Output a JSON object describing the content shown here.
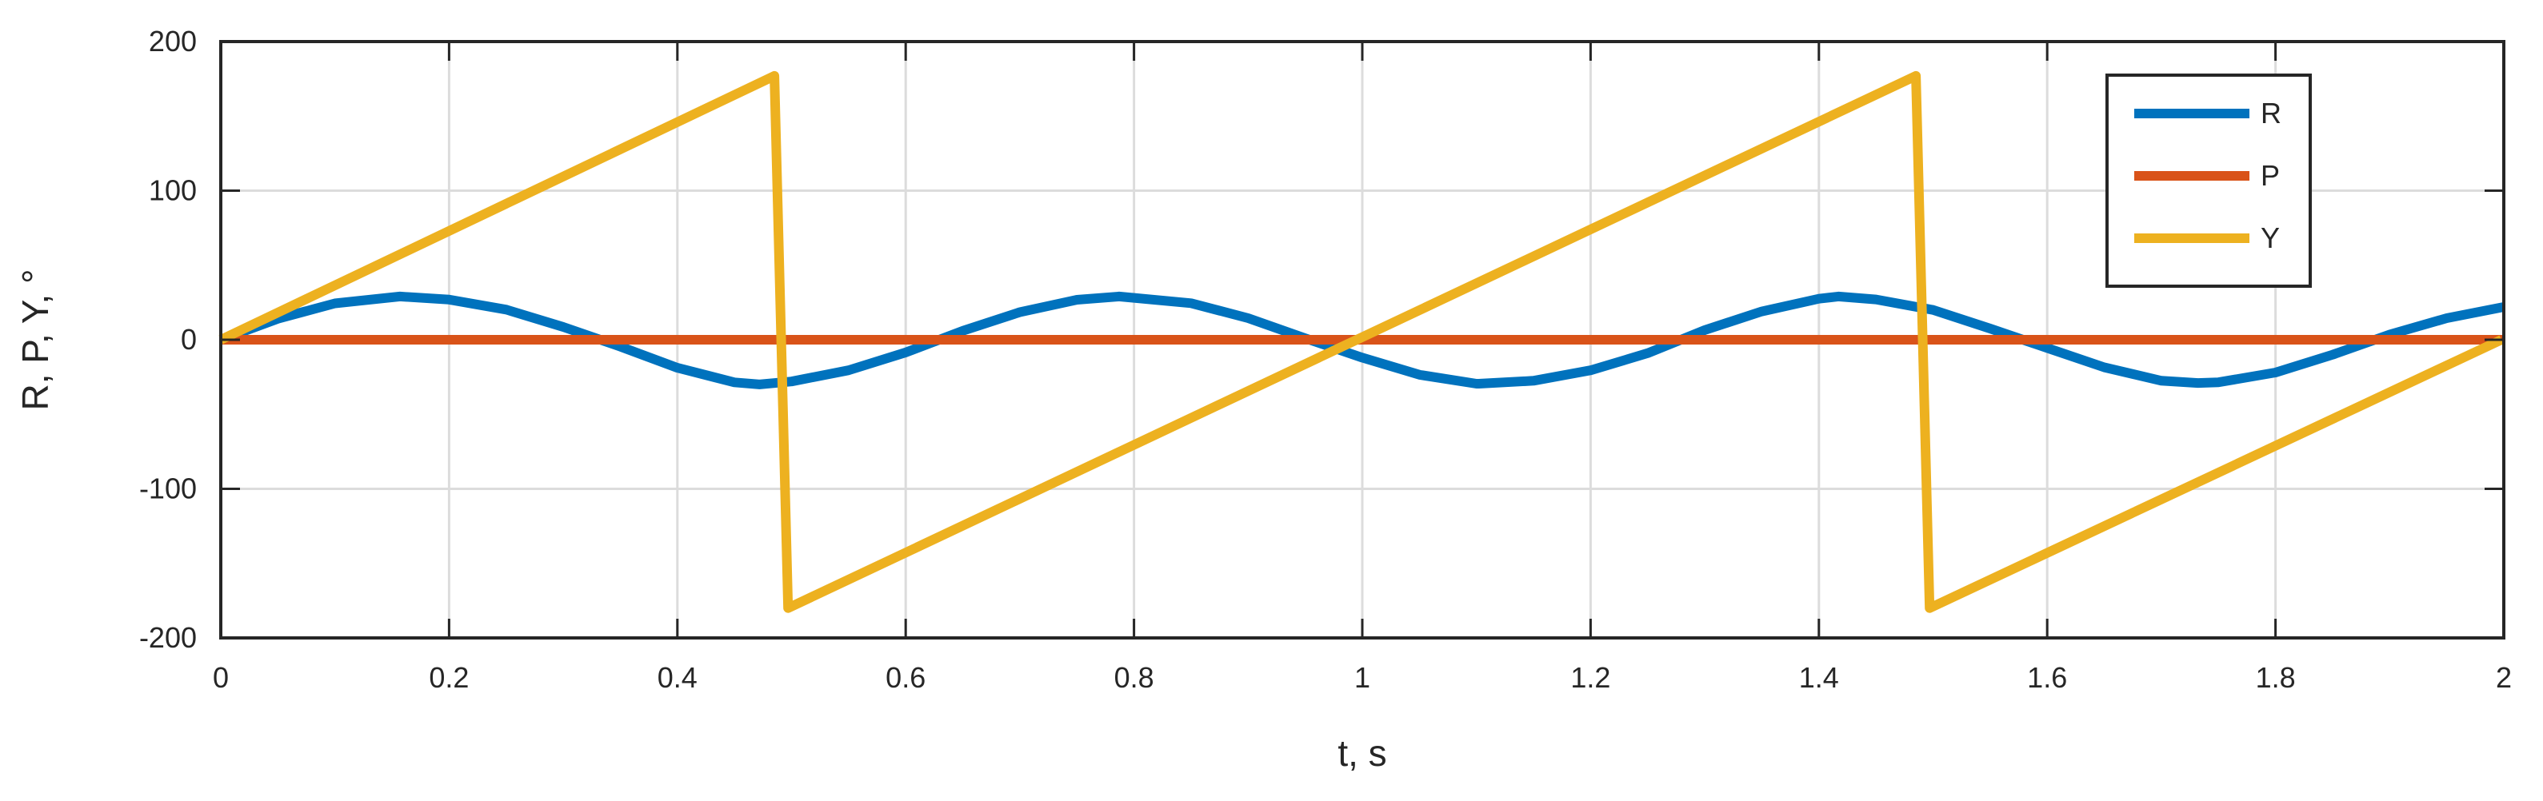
{
  "chart_data": {
    "type": "line",
    "title": "",
    "xlabel": "t, s",
    "ylabel": "R, P, Y, °",
    "xlim": [
      0,
      2
    ],
    "ylim": [
      -200,
      200
    ],
    "x_ticks": [
      0,
      0.2,
      0.4,
      0.6,
      0.8,
      1,
      1.2,
      1.4,
      1.6,
      1.8,
      2
    ],
    "x_tick_labels": [
      "0",
      "0.2",
      "0.4",
      "0.6",
      "0.8",
      "1",
      "1.2",
      "1.4",
      "1.6",
      "1.8",
      "2"
    ],
    "y_ticks": [
      -200,
      -100,
      0,
      100,
      200
    ],
    "y_tick_labels": [
      "-200",
      "-100",
      "0",
      "100",
      "200"
    ],
    "grid": true,
    "legend_position": "top-right",
    "series": [
      {
        "name": "R",
        "color": "#0072BD",
        "x": [
          0,
          0.05,
          0.1,
          0.157,
          0.2,
          0.25,
          0.3,
          0.35,
          0.4,
          0.45,
          0.472,
          0.5,
          0.55,
          0.6,
          0.65,
          0.7,
          0.75,
          0.787,
          0.85,
          0.9,
          0.95,
          1.0,
          1.05,
          1.1,
          1.102,
          1.15,
          1.2,
          1.25,
          1.3,
          1.35,
          1.4,
          1.417,
          1.45,
          1.5,
          1.55,
          1.6,
          1.65,
          1.7,
          1.732,
          1.75,
          1.8,
          1.85,
          1.9,
          1.95,
          2.0
        ],
        "y": [
          0,
          14.1,
          24.4,
          29.0,
          26.9,
          20.2,
          8.6,
          -4.6,
          -18.8,
          -28.6,
          -30.0,
          -28.0,
          -20.5,
          -8.5,
          6.0,
          18.5,
          26.8,
          29.0,
          24.5,
          14.5,
          1.0,
          -12.0,
          -23.5,
          -29.5,
          -29.5,
          -27.5,
          -20.5,
          -9.0,
          6.5,
          19.0,
          27.5,
          29.0,
          27.0,
          20.0,
          7.5,
          -5.5,
          -18.5,
          -27.5,
          -29.0,
          -28.5,
          -22.0,
          -10.0,
          3.5,
          14.5,
          22.0
        ]
      },
      {
        "name": "P",
        "color": "#D95319",
        "x": [
          0,
          2
        ],
        "y": [
          0,
          0
        ]
      },
      {
        "name": "Y",
        "color": "#EDB120",
        "x": [
          0,
          0.485,
          0.497,
          1.485,
          1.497,
          1.998
        ],
        "y": [
          0,
          177,
          -180,
          177,
          -180,
          0
        ]
      }
    ]
  }
}
